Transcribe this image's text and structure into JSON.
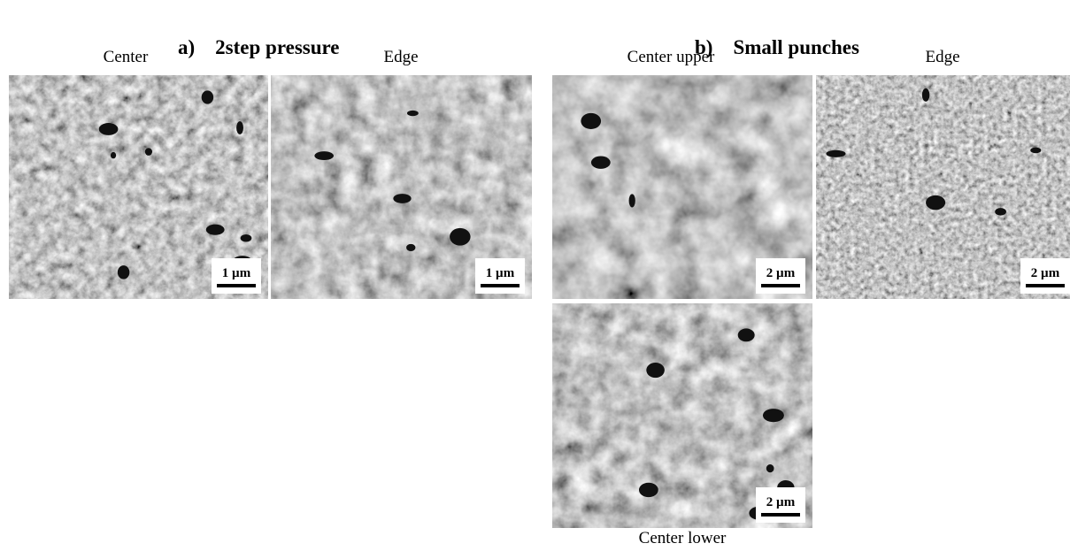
{
  "panels": [
    {
      "label": "a)",
      "title": "2step pressure",
      "images": [
        {
          "caption": "Center",
          "scale_bar": "1 µm"
        },
        {
          "caption": "Edge",
          "scale_bar": "1 µm"
        }
      ]
    },
    {
      "label": "b)",
      "title": "Small punches",
      "images": [
        {
          "caption": "Center upper",
          "scale_bar": "2 µm"
        },
        {
          "caption": "Edge",
          "scale_bar": "2 µm"
        },
        {
          "caption": "Center lower",
          "scale_bar": "2 µm"
        }
      ]
    }
  ]
}
